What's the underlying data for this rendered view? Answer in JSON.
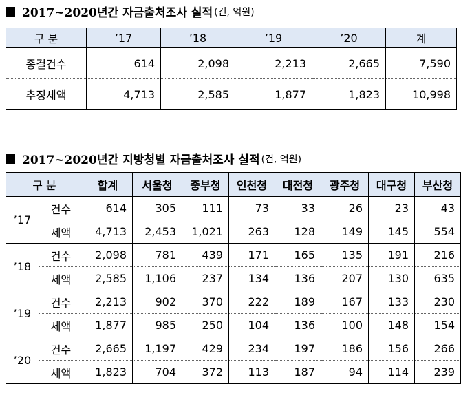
{
  "section1": {
    "title": "2017~2020년간 자금출처조사 실적",
    "unit": "(건, 억원)",
    "headers": [
      "구  분",
      "’17",
      "’18",
      "’19",
      "’20",
      "계"
    ],
    "rows": [
      {
        "label": "종결건수",
        "values": [
          "614",
          "2,098",
          "2,213",
          "2,665",
          "7,590"
        ]
      },
      {
        "label": "추징세액",
        "values": [
          "4,713",
          "2,585",
          "1,877",
          "1,823",
          "10,998"
        ]
      }
    ]
  },
  "section2": {
    "title": "2017~2020년간 지방청별 자금출처조사 실적",
    "unit": "(건, 억원)",
    "headers": [
      "구  분",
      "합계",
      "서울청",
      "중부청",
      "인천청",
      "대전청",
      "광주청",
      "대구청",
      "부산청"
    ],
    "years": [
      {
        "year": "’17",
        "rows": [
          {
            "label": "건수",
            "values": [
              "614",
              "305",
              "111",
              "73",
              "33",
              "26",
              "23",
              "43"
            ]
          },
          {
            "label": "세액",
            "values": [
              "4,713",
              "2,453",
              "1,021",
              "263",
              "128",
              "149",
              "145",
              "554"
            ]
          }
        ]
      },
      {
        "year": "’18",
        "rows": [
          {
            "label": "건수",
            "values": [
              "2,098",
              "781",
              "439",
              "171",
              "165",
              "135",
              "191",
              "216"
            ]
          },
          {
            "label": "세액",
            "values": [
              "2,585",
              "1,106",
              "237",
              "134",
              "136",
              "207",
              "130",
              "635"
            ]
          }
        ]
      },
      {
        "year": "’19",
        "rows": [
          {
            "label": "건수",
            "values": [
              "2,213",
              "902",
              "370",
              "222",
              "189",
              "167",
              "133",
              "230"
            ]
          },
          {
            "label": "세액",
            "values": [
              "1,877",
              "985",
              "250",
              "104",
              "136",
              "100",
              "148",
              "154"
            ]
          }
        ]
      },
      {
        "year": "’20",
        "rows": [
          {
            "label": "건수",
            "values": [
              "2,665",
              "1,197",
              "429",
              "234",
              "197",
              "186",
              "156",
              "266"
            ]
          },
          {
            "label": "세액",
            "values": [
              "1,823",
              "704",
              "372",
              "113",
              "187",
              "94",
              "114",
              "239"
            ]
          }
        ]
      }
    ]
  }
}
